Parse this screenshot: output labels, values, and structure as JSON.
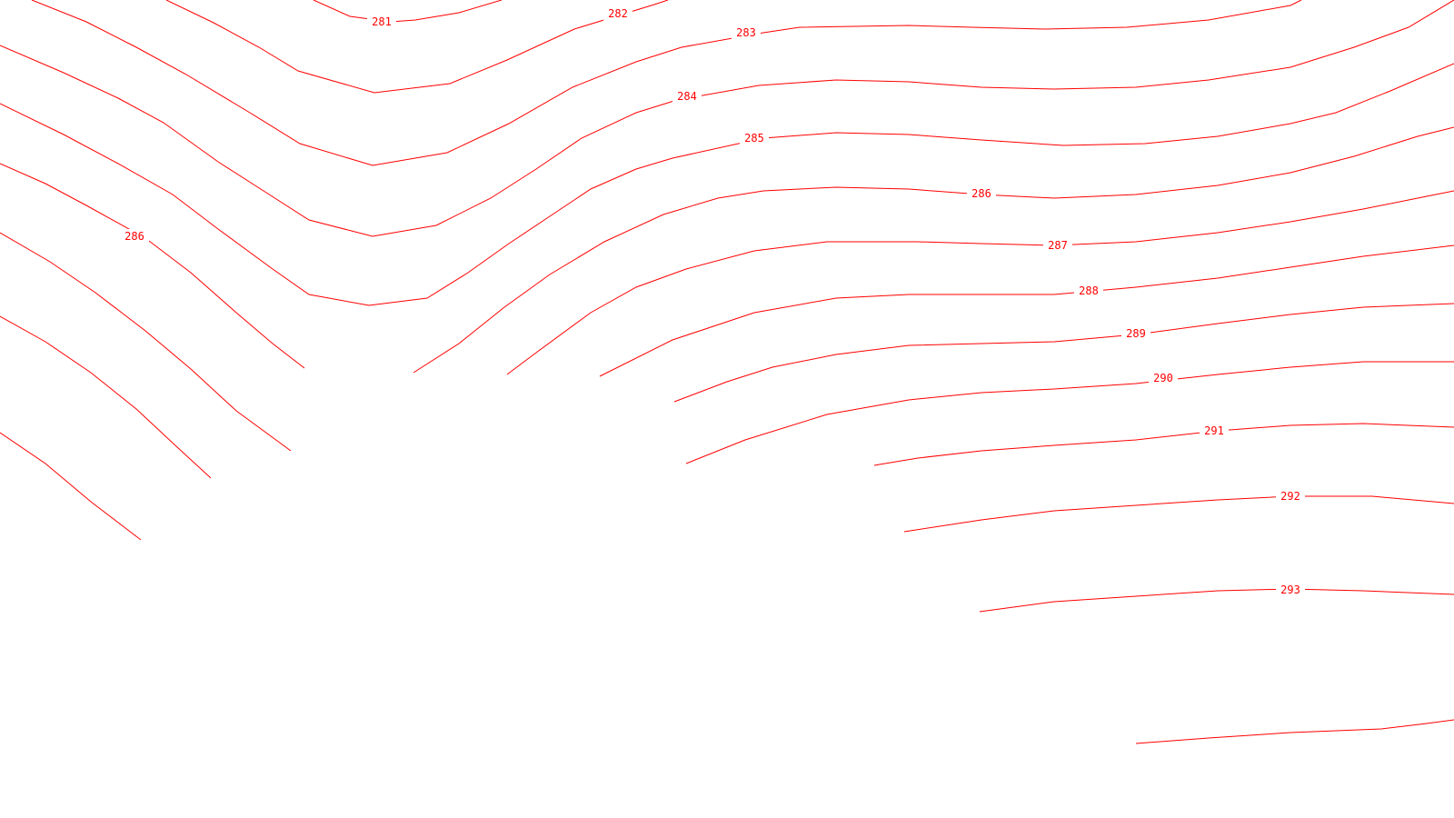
{
  "map": {
    "type": "contour",
    "line_color": "#ff0000",
    "background": "#ffffff",
    "contour_labels": [
      "281",
      "282",
      "283",
      "284",
      "285",
      "286",
      "286",
      "287",
      "288",
      "289",
      "290",
      "291",
      "292",
      "293"
    ]
  }
}
